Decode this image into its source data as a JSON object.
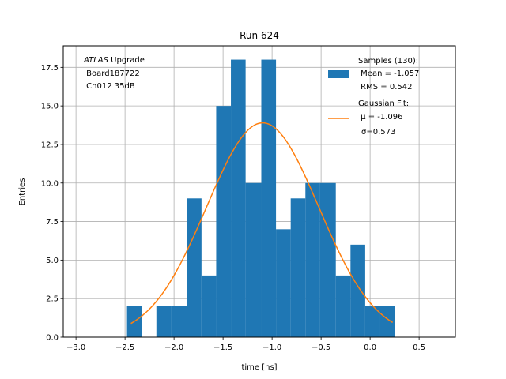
{
  "chart_data": {
    "type": "bar",
    "title": "Run 624",
    "xlabel": "time [ns]",
    "ylabel": "Entries",
    "xlim": [
      -3.13,
      0.87
    ],
    "ylim": [
      0,
      18.9
    ],
    "xticks": [
      -3.0,
      -2.5,
      -2.0,
      -1.5,
      -1.0,
      -0.5,
      0.0,
      0.5
    ],
    "xtick_labels": [
      "−3.0",
      "−2.5",
      "−2.0",
      "−1.5",
      "−1.0",
      "−0.5",
      "0.0",
      "0.5"
    ],
    "yticks": [
      0.0,
      2.5,
      5.0,
      7.5,
      10.0,
      12.5,
      15.0,
      17.5
    ],
    "ytick_labels": [
      "0.0",
      "2.5",
      "5.0",
      "7.5",
      "10.0",
      "12.5",
      "15.0",
      "17.5"
    ],
    "grid": true,
    "histogram": {
      "name": "Samples (130):",
      "color": "#1f77b4",
      "bins": [
        {
          "x0": -2.48,
          "x1": -2.33,
          "count": 2
        },
        {
          "x0": -2.33,
          "x1": -2.18,
          "count": 0
        },
        {
          "x0": -2.18,
          "x1": -2.03,
          "count": 2
        },
        {
          "x0": -2.03,
          "x1": -1.87,
          "count": 2
        },
        {
          "x0": -1.87,
          "x1": -1.72,
          "count": 9
        },
        {
          "x0": -1.72,
          "x1": -1.57,
          "count": 4
        },
        {
          "x0": -1.57,
          "x1": -1.42,
          "count": 15
        },
        {
          "x0": -1.42,
          "x1": -1.27,
          "count": 18
        },
        {
          "x0": -1.27,
          "x1": -1.11,
          "count": 10
        },
        {
          "x0": -1.11,
          "x1": -0.96,
          "count": 18
        },
        {
          "x0": -0.96,
          "x1": -0.81,
          "count": 7
        },
        {
          "x0": -0.81,
          "x1": -0.66,
          "count": 9
        },
        {
          "x0": -0.66,
          "x1": -0.51,
          "count": 10
        },
        {
          "x0": -0.51,
          "x1": -0.35,
          "count": 10
        },
        {
          "x0": -0.35,
          "x1": -0.2,
          "count": 4
        },
        {
          "x0": -0.2,
          "x1": -0.05,
          "count": 6
        },
        {
          "x0": -0.05,
          "x1": 0.1,
          "count": 2
        },
        {
          "x0": 0.1,
          "x1": 0.25,
          "count": 2
        }
      ]
    },
    "fit": {
      "name": "Gaussian Fit:",
      "color": "#ff7f0e",
      "amplitude": 13.9,
      "mu": -1.096,
      "sigma": 0.573,
      "x_start": -2.44,
      "x_end": 0.23
    },
    "legend": {
      "position": "top-right",
      "samples_title": "Samples (130):",
      "samples_mean": " Mean = -1.057",
      "samples_rms": " RMS = 0.542",
      "fit_title": "Gaussian Fit:",
      "fit_mu": " μ = -1.096",
      "fit_sigma": "σ=0.573"
    },
    "annotation": {
      "line1_italic": "ATLAS",
      "line1_rest": " Upgrade",
      "line2": " Board187722",
      "line3": " Ch012 35dB"
    }
  }
}
